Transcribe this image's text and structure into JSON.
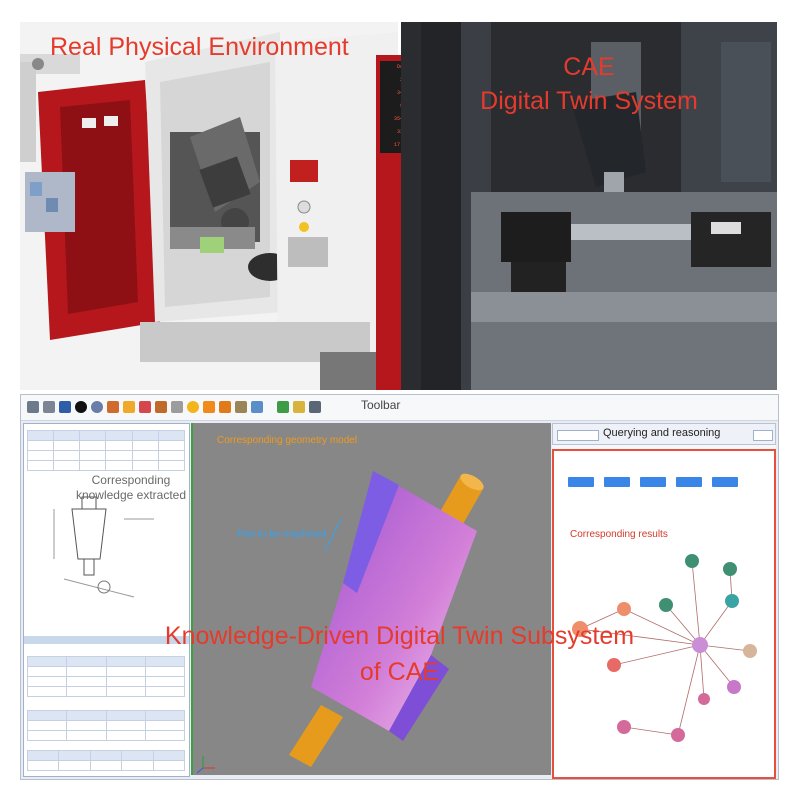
{
  "physical": {
    "title": "Real Physical Environment",
    "panel_readouts": [
      "Delay",
      "2.10",
      "34.02",
      "9.60",
      "354.21",
      "33.34",
      "17.990"
    ]
  },
  "cae": {
    "title_line1": "CAE",
    "title_line2": "Digital Twin System"
  },
  "subsystem": {
    "toolbar_label": "Toolbar",
    "geometry_label": "Corresponding geometry model",
    "part_label": "Part to be machined",
    "knowledge_label": "Corresponding knowledge extracted",
    "query_label": "Querying and reasoning",
    "results_label": "Corresponding results",
    "main_title_line1": "Knowledge-Driven Digital Twin Subsystem",
    "main_title_line2": "of CAE"
  },
  "colors": {
    "red_title": "#e53b2c",
    "machine_red": "#b5171c",
    "graph_border": "#e6503c",
    "part_purple": "#c27ad0",
    "shaft_orange": "#e69b1c",
    "button_blue": "#3a86e8"
  }
}
